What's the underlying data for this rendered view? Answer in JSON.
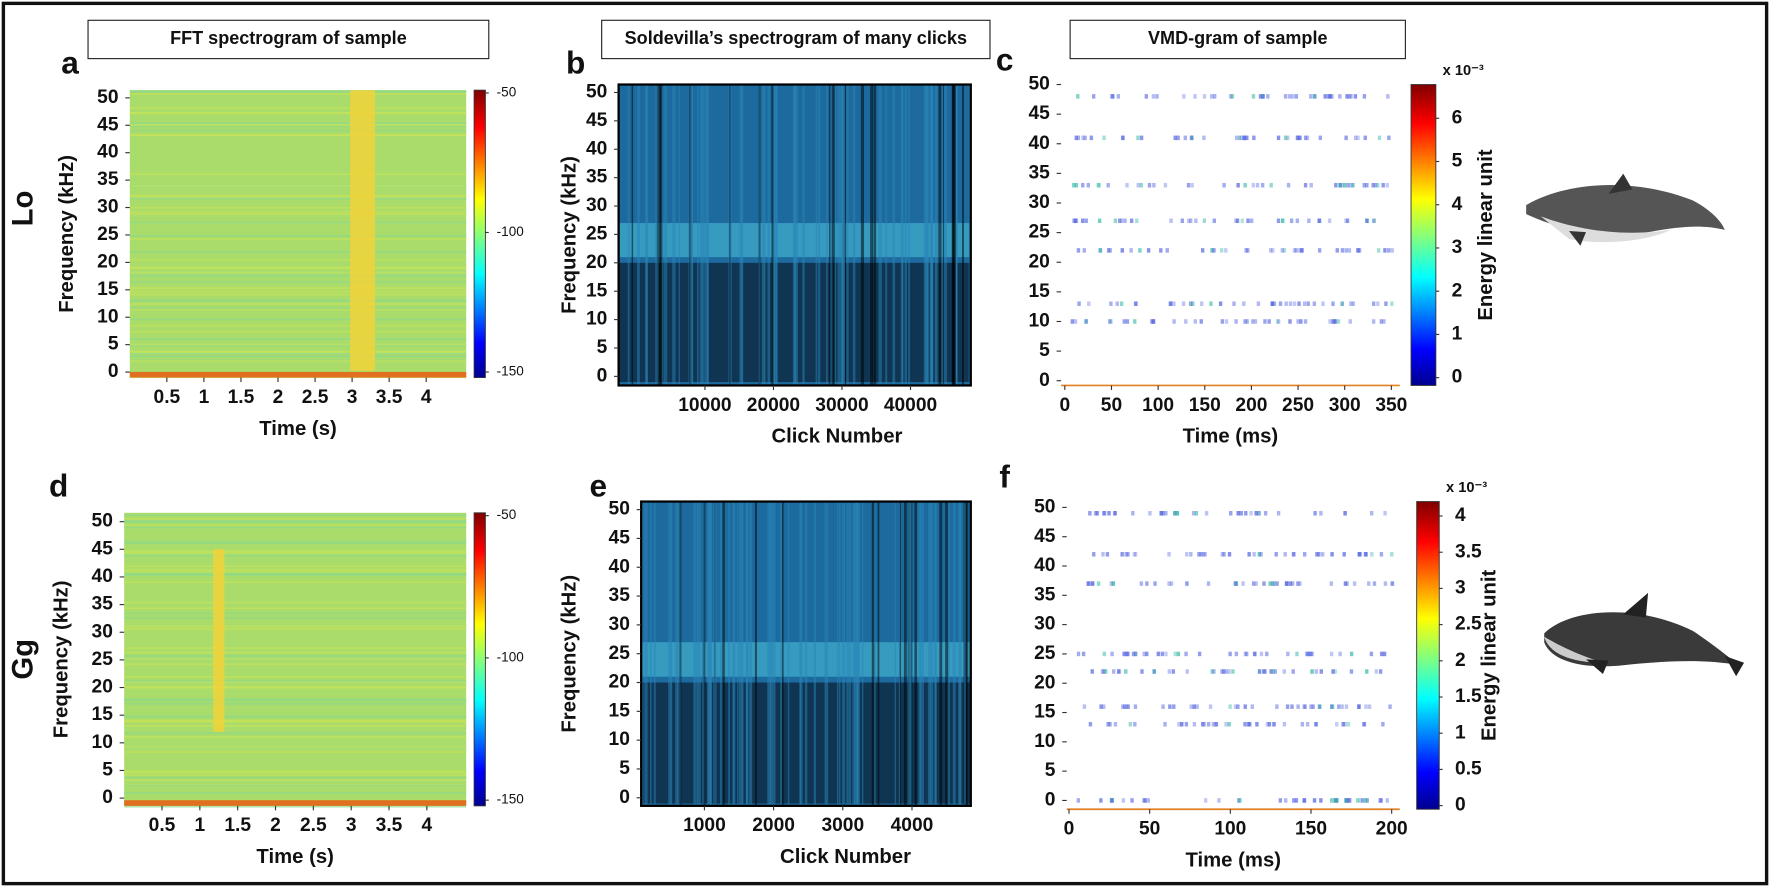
{
  "chart_data": [
    {
      "type": "heatmap",
      "label": "a",
      "title": "FFT spectrogram of sample",
      "row_label": "Lo",
      "xlabel": "Time (s)",
      "ylabel": "Frequency (kHz)",
      "xlim": [
        0,
        4.54
      ],
      "xticks": [
        0.5,
        1,
        1.5,
        2,
        2.5,
        3,
        3.5,
        4
      ],
      "ylim": [
        -1,
        51.4
      ],
      "yticks": [
        0,
        5,
        10,
        15,
        20,
        25,
        30,
        35,
        40,
        45,
        50
      ],
      "colorbar": {
        "lim": [
          -152,
          -49
        ],
        "ticks": [
          -50,
          -100,
          -150
        ]
      }
    },
    {
      "type": "heatmap",
      "label": "b",
      "title": "Soldevilla’s spectrogram of many clicks",
      "xlabel": "Click Number",
      "ylabel": "Frequency (kHz)",
      "xlim": [
        -2600,
        48800
      ],
      "xticks": [
        10000,
        20000,
        30000,
        40000
      ],
      "ylim": [
        -1.6,
        51.4
      ],
      "yticks": [
        0,
        5,
        10,
        15,
        20,
        25,
        30,
        35,
        40,
        45,
        50
      ]
    },
    {
      "type": "heatmap",
      "label": "c",
      "title": "VMD-gram of sample",
      "xlabel": "Time (ms)",
      "xlim": [
        -4,
        359
      ],
      "xticks": [
        0,
        50,
        100,
        150,
        200,
        250,
        300,
        350
      ],
      "ylim": [
        -0.8,
        50
      ],
      "yticks": [
        0,
        5,
        10,
        15,
        20,
        25,
        30,
        35,
        40,
        45,
        50
      ],
      "colorbar": {
        "label": "Energy linear unit",
        "multiplier": "x 10⁻³",
        "lim": [
          -0.18,
          6.78
        ],
        "ticks": [
          0,
          1,
          2,
          3,
          4,
          5,
          6
        ]
      }
    },
    {
      "type": "heatmap",
      "label": "d",
      "row_label": "Gg",
      "xlabel": "Time (s)",
      "ylabel": "Frequency (kHz)",
      "xlim": [
        0,
        4.52
      ],
      "xticks": [
        0.5,
        1,
        1.5,
        2,
        2.5,
        3,
        3.5,
        4
      ],
      "ylim": [
        -1.4,
        51.6
      ],
      "yticks": [
        0,
        5,
        10,
        15,
        20,
        25,
        30,
        35,
        40,
        45,
        50
      ],
      "colorbar": {
        "lim": [
          -152,
          -49
        ],
        "ticks": [
          -50,
          -100,
          -150
        ]
      }
    },
    {
      "type": "heatmap",
      "label": "e",
      "xlabel": "Click Number",
      "ylabel": "Frequency (kHz)",
      "xlim": [
        86,
        4850
      ],
      "xticks": [
        1000,
        2000,
        3000,
        4000
      ],
      "ylim": [
        -1.4,
        51.4
      ],
      "yticks": [
        0,
        5,
        10,
        15,
        20,
        25,
        30,
        35,
        40,
        45,
        50
      ]
    },
    {
      "type": "heatmap",
      "label": "f",
      "xlabel": "Time (ms)",
      "xlim": [
        -1.4,
        205
      ],
      "xticks": [
        0,
        50,
        100,
        150,
        200
      ],
      "ylim": [
        -1.5,
        51
      ],
      "yticks": [
        0,
        5,
        10,
        15,
        20,
        25,
        30,
        35,
        40,
        45,
        50
      ],
      "colorbar": {
        "label": "Energy linear unit",
        "multiplier": "x 10⁻³",
        "lim": [
          -0.05,
          4.2
        ],
        "ticks": [
          0,
          0.5,
          1,
          1.5,
          2,
          2.5,
          3,
          3.5,
          4
        ]
      }
    }
  ]
}
